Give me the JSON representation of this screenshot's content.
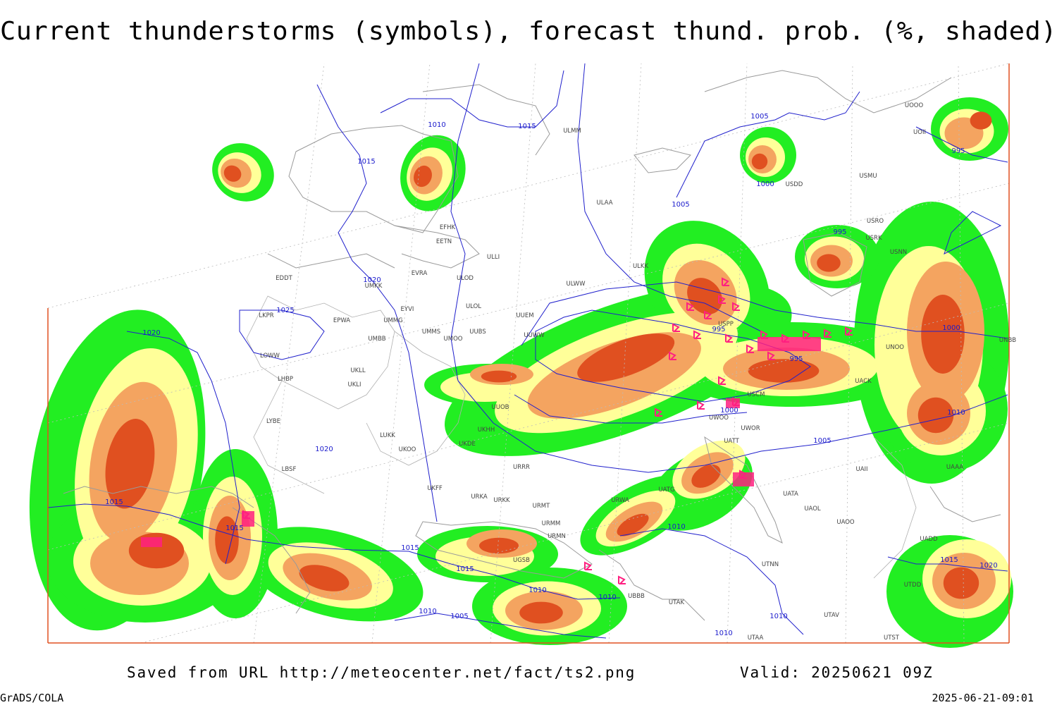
{
  "title": "Current thunderstorms (symbols), forecast thund. prob. (%, shaded)",
  "footer": {
    "saved_from": "Saved from URL http://meteocenter.net/fact/ts2.png",
    "valid": "Valid: 20250621 09Z",
    "software": "GrADS/COLA",
    "timestamp": "2025-06-21-09:01"
  },
  "isobar_labels": [
    "1010",
    "1015",
    "1015",
    "1005",
    "1000",
    "1005",
    "995",
    "995",
    "1020",
    "1025",
    "1020",
    "995",
    "995",
    "1000",
    "1000",
    "1010",
    "1005",
    "1020",
    "1015",
    "1015",
    "1010",
    "1015",
    "1015",
    "1010",
    "1010",
    "1010",
    "1005",
    "1010",
    "1010",
    "1015",
    "1020"
  ],
  "stations": [
    "EFHK",
    "EETN",
    "EVRA",
    "ULOD",
    "ULOL",
    "EDDT",
    "UMKK",
    "EYVI",
    "LKPR",
    "EPWA",
    "UMMG",
    "UMMS",
    "UMOO",
    "UUBS",
    "UMBB",
    "LOWW",
    "LHBP",
    "UKLL",
    "UKLI",
    "LYBE",
    "LUKK",
    "UKOO",
    "UKDE",
    "UKHH",
    "UUOB",
    "URRR",
    "UKFF",
    "URKA",
    "URKK",
    "URMT",
    "URMM",
    "URMN",
    "UGSB",
    "UBBB",
    "UTAK",
    "UUEM",
    "UUWW",
    "ULWW",
    "ULKK",
    "ULAA",
    "ULMM",
    "ULLI",
    "USPP",
    "USCM",
    "UWOO",
    "UWOR",
    "UATT",
    "UATG",
    "URWA",
    "UATA",
    "UAOL",
    "UAOO",
    "UTNN",
    "UTAV",
    "UTAA",
    "UTST",
    "UAII",
    "UAAA",
    "UACK",
    "UNOO",
    "UNBB",
    "USNN",
    "USRK",
    "USRO",
    "USMU",
    "USDD",
    "UOOO",
    "UOII",
    "UADD",
    "UTDD",
    "LBSF"
  ]
}
